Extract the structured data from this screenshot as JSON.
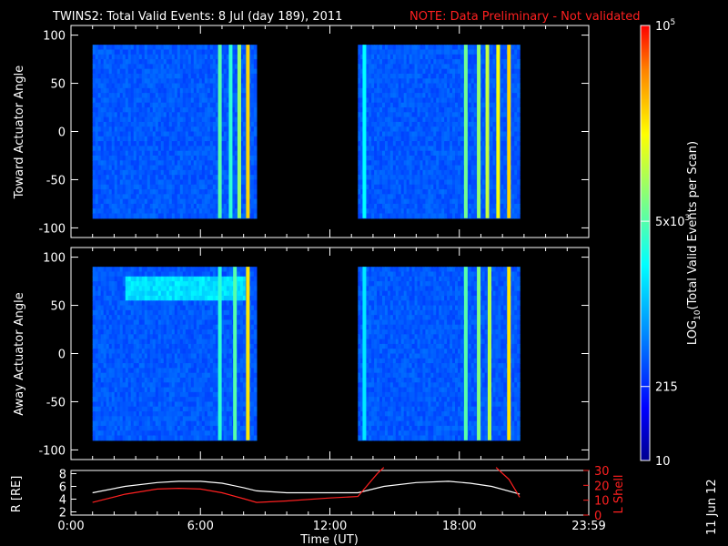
{
  "header": {
    "title": "TWINS2: Total Valid Events:  8 Jul (day 189), 2011",
    "note": "NOTE: Data Preliminary - Not validated"
  },
  "chart_data": [
    {
      "type": "heatmap",
      "panel": "toward",
      "ylabel": "Toward Actuator Angle",
      "ylim": [
        -110,
        110
      ],
      "yticks": [
        "100",
        "50",
        "0",
        "-50",
        "-100"
      ],
      "data_ylim": [
        -90,
        90
      ],
      "xlim_hours": [
        0,
        24
      ],
      "coverage_hours": [
        [
          1.0,
          8.6
        ],
        [
          13.3,
          20.8
        ]
      ],
      "bright_streaks": [
        {
          "hour": 6.9,
          "level": 0.55
        },
        {
          "hour": 7.4,
          "level": 0.5
        },
        {
          "hour": 7.8,
          "level": 0.62
        },
        {
          "hour": 8.2,
          "level": 0.8
        },
        {
          "hour": 13.6,
          "level": 0.45
        },
        {
          "hour": 18.3,
          "level": 0.58
        },
        {
          "hour": 18.9,
          "level": 0.62
        },
        {
          "hour": 19.3,
          "level": 0.68
        },
        {
          "hour": 19.8,
          "level": 0.74
        },
        {
          "hour": 20.3,
          "level": 0.8
        }
      ]
    },
    {
      "type": "heatmap",
      "panel": "away",
      "ylabel": "Away Actuator Angle",
      "ylim": [
        -110,
        110
      ],
      "yticks": [
        "100",
        "50",
        "0",
        "-50",
        "-100"
      ],
      "data_ylim": [
        -90,
        90
      ],
      "xlim_hours": [
        0,
        24
      ],
      "coverage_hours": [
        [
          1.0,
          8.6
        ],
        [
          13.3,
          20.8
        ]
      ],
      "bright_band": {
        "angle_range": [
          60,
          80
        ],
        "hours": [
          2.5,
          8.0
        ],
        "level": 0.45
      },
      "bright_streaks": [
        {
          "hour": 6.9,
          "level": 0.5
        },
        {
          "hour": 7.6,
          "level": 0.55
        },
        {
          "hour": 8.2,
          "level": 0.78
        },
        {
          "hour": 13.6,
          "level": 0.42
        },
        {
          "hour": 18.3,
          "level": 0.55
        },
        {
          "hour": 18.9,
          "level": 0.6
        },
        {
          "hour": 19.4,
          "level": 0.66
        },
        {
          "hour": 20.3,
          "level": 0.78
        }
      ]
    },
    {
      "type": "line",
      "panel": "orbit",
      "xlabel": "Time (UT)",
      "xticks": [
        "0:00",
        "6:00",
        "12:00",
        "18:00",
        "23:59"
      ],
      "ylabel_left": "R [RE]",
      "ylim_left": [
        1.5,
        8.5
      ],
      "yticks_left": [
        "2",
        "4",
        "6",
        "8"
      ],
      "ylabel_right": "L Shell",
      "ylim_right": [
        0,
        30
      ],
      "yticks_right": [
        "0",
        "10",
        "20",
        "30"
      ],
      "series": [
        {
          "color": "#ffffff",
          "axis": "left",
          "x": [
            1.0,
            2.5,
            4.0,
            5.0,
            6.0,
            7.0,
            8.0,
            8.6,
            10.0,
            12.0,
            13.3,
            14.5,
            16.0,
            17.5,
            18.5,
            19.5,
            20.8
          ],
          "y": [
            5.0,
            6.0,
            6.6,
            6.8,
            6.8,
            6.5,
            5.8,
            5.3,
            5.0,
            5.0,
            5.0,
            6.0,
            6.6,
            6.8,
            6.5,
            6.0,
            4.8
          ]
        },
        {
          "color": "#ff2020",
          "axis": "right",
          "x": [
            1.0,
            2.5,
            4.0,
            5.0,
            6.0,
            7.0,
            8.0,
            8.6,
            10.0,
            12.0,
            13.3,
            14.2,
            14.5
          ],
          "y": [
            8.5,
            14.0,
            17.5,
            18.0,
            17.5,
            15.0,
            11.0,
            8.5,
            9.5,
            11.5,
            12.5,
            28.0,
            32.0
          ]
        },
        {
          "color": "#ff2020",
          "axis": "right",
          "x": [
            19.7,
            20.3,
            20.8
          ],
          "y": [
            32.0,
            24.0,
            12.0
          ]
        }
      ]
    }
  ],
  "colorbar": {
    "label": "LOG10(Total Valid Events per Scan)",
    "label_main": "LOG",
    "label_sub": "10",
    "label_rest": "(Total Valid Events per Scan)",
    "tick_labels": [
      {
        "base": "10",
        "sup": "5",
        "level": 1.0
      },
      {
        "base": "5x10",
        "sup": "3",
        "level": 0.55
      },
      {
        "base": "215",
        "sup": "",
        "level": 0.17
      },
      {
        "base": "10",
        "sup": "",
        "level": 0.0
      }
    ]
  },
  "date_stamp": "11 Jun 12"
}
